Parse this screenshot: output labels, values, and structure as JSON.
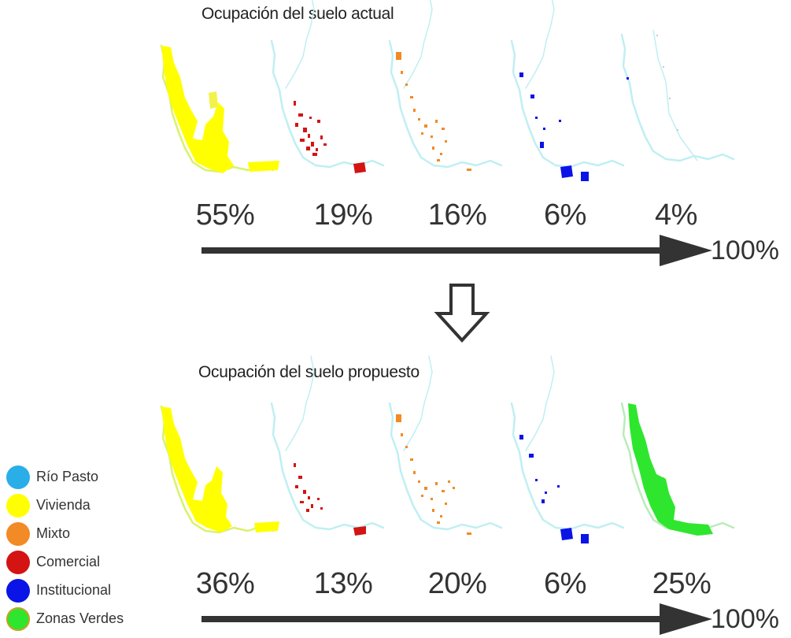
{
  "titles": {
    "actual": "Ocupación del suelo actual",
    "propuesto": "Ocupación del suelo propuesto"
  },
  "actual_percentages": [
    "55%",
    "19%",
    "16%",
    "6%",
    "4%"
  ],
  "propuesto_percentages": [
    "36%",
    "13%",
    "20%",
    "6%",
    "25%"
  ],
  "total_label": "100%",
  "legend": [
    {
      "label": "Río Pasto",
      "color": "#29aee8"
    },
    {
      "label": "Vivienda",
      "color": "#ffff00"
    },
    {
      "label": "Mixto",
      "color": "#f28a25"
    },
    {
      "label": "Comercial",
      "color": "#d41313"
    },
    {
      "label": "Institucional",
      "color": "#0a14e6"
    },
    {
      "label": "Zonas Verdes",
      "color": "#2ee62e"
    }
  ],
  "map_layers": [
    "Vivienda",
    "Comercial",
    "Mixto",
    "Institucional",
    "Zonas Verdes"
  ],
  "colors": {
    "river": "#aee6ee",
    "arrow": "#333333"
  }
}
